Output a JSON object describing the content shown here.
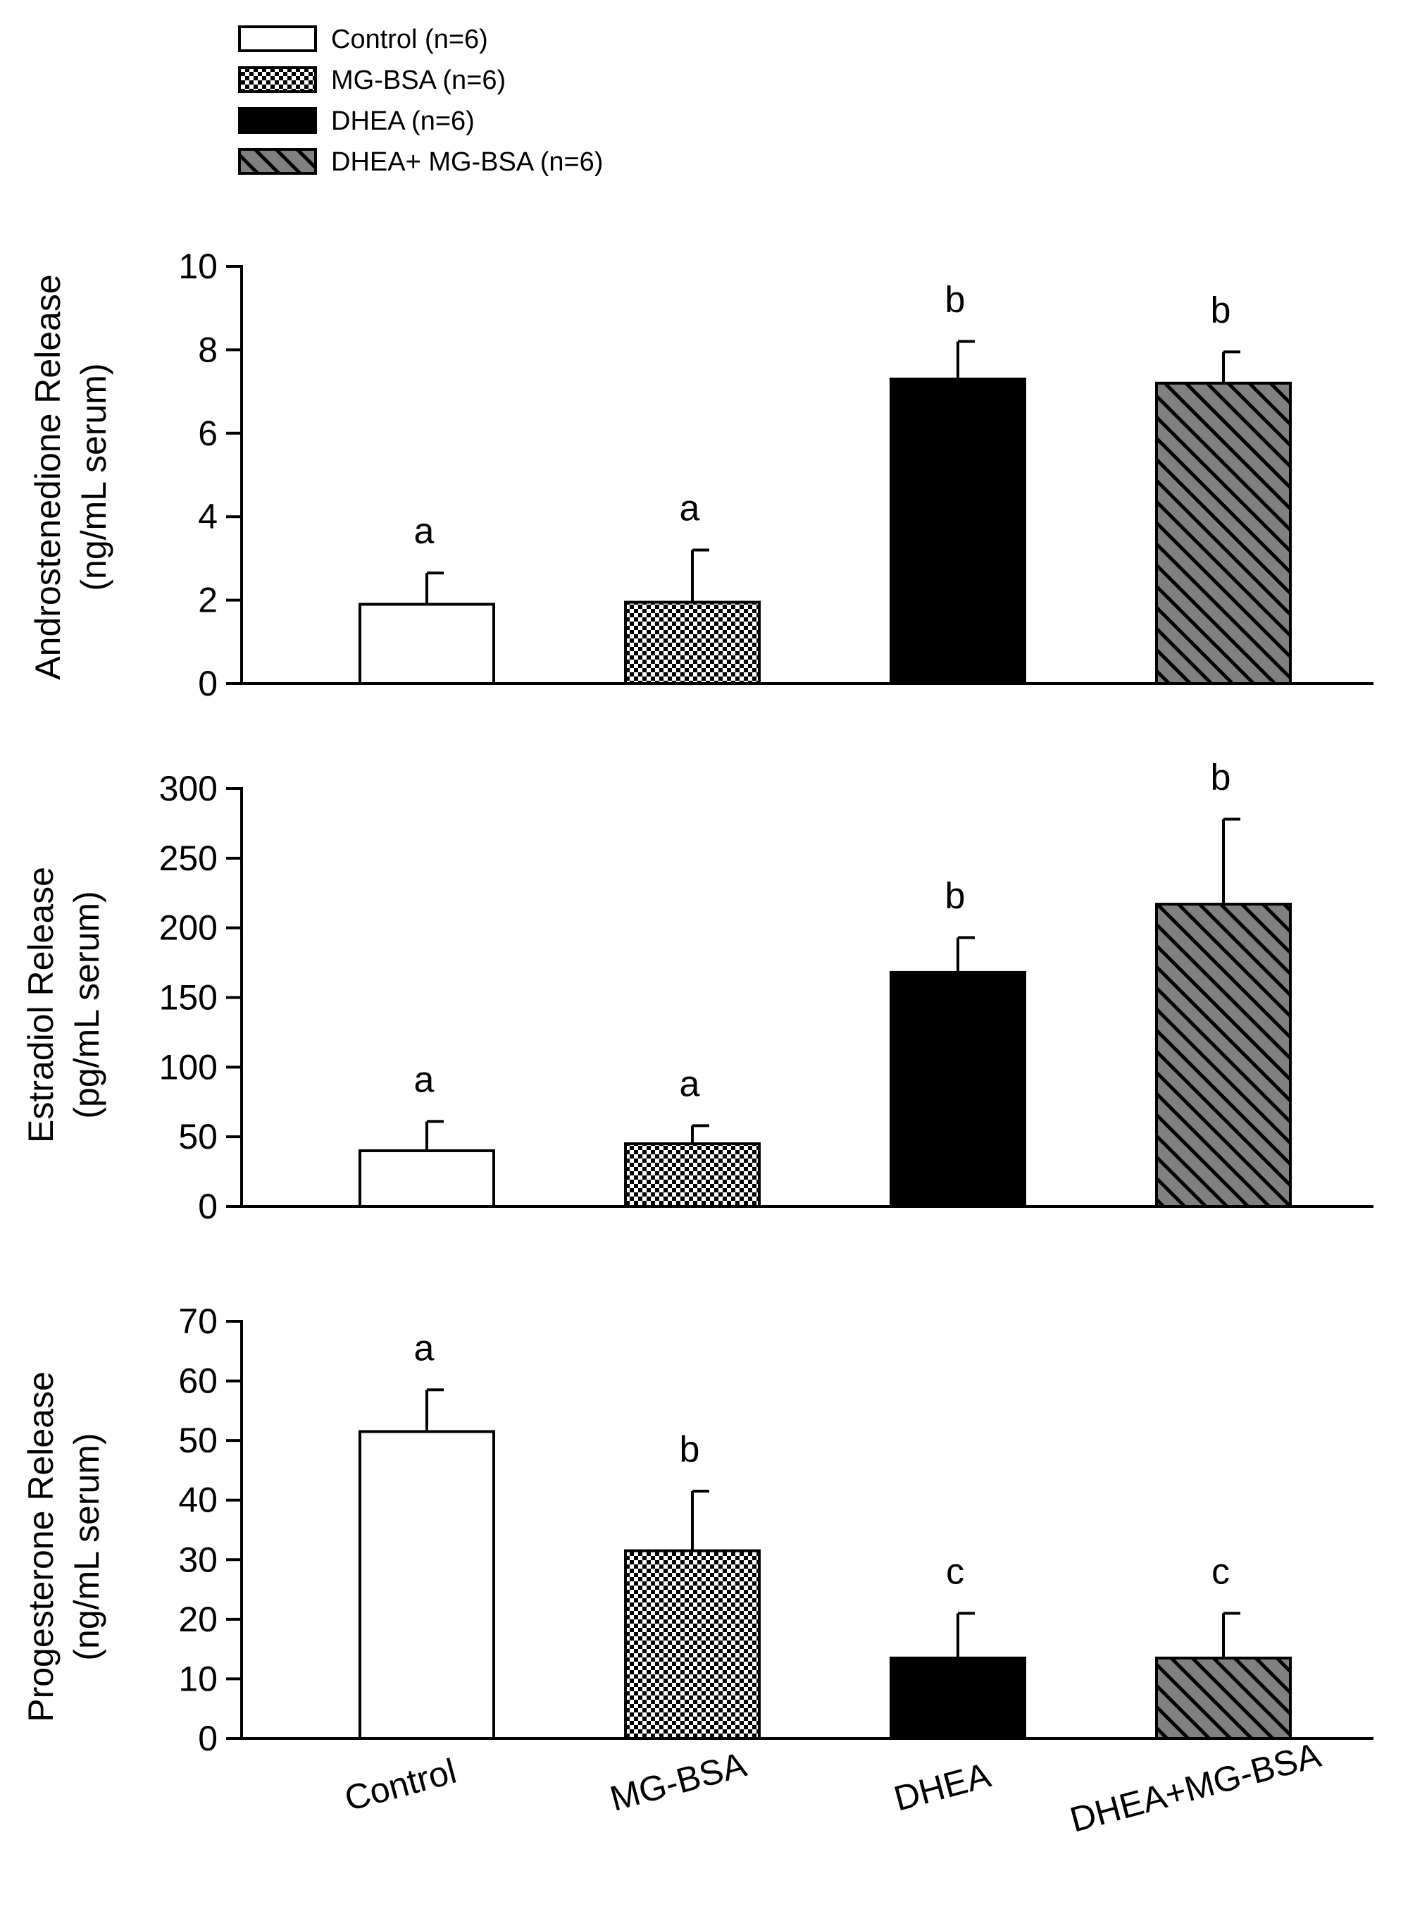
{
  "legend": {
    "items": [
      {
        "label": "Control (n=6)",
        "fill": "white"
      },
      {
        "label": "MG-BSA (n=6)",
        "fill": "checker"
      },
      {
        "label": "DHEA (n=6)",
        "fill": "black"
      },
      {
        "label": "DHEA+ MG-BSA (n=6)",
        "fill": "hatch"
      }
    ]
  },
  "colors": {
    "black": "#000000",
    "white": "#ffffff",
    "hatch_bg": "#808080",
    "checker_light": "#ffffff",
    "checker_dark": "#000000"
  },
  "chart_data": [
    {
      "type": "bar",
      "title": "",
      "ylabel_line1": "Androstenedione Release",
      "ylabel_line2": "(ng/mL serum)",
      "xlabel": "",
      "categories": [
        "Control",
        "MG-BSA",
        "DHEA",
        "DHEA+MG-BSA"
      ],
      "values": [
        1.9,
        1.95,
        7.3,
        7.2
      ],
      "errors": [
        0.75,
        1.25,
        0.9,
        0.75
      ],
      "letters": [
        "a",
        "a",
        "b",
        "b"
      ],
      "ylim": [
        0,
        10
      ],
      "yticks": [
        0,
        2,
        4,
        6,
        8,
        10
      ],
      "ytick_labels": [
        "0",
        "2",
        "4",
        "6",
        "8",
        "10"
      ]
    },
    {
      "type": "bar",
      "title": "",
      "ylabel_line1": "Estradiol Release",
      "ylabel_line2": "(pg/mL serum)",
      "xlabel": "",
      "categories": [
        "Control",
        "MG-BSA",
        "DHEA",
        "DHEA+MG-BSA"
      ],
      "values": [
        40,
        45,
        168,
        217
      ],
      "errors": [
        21,
        13,
        25,
        61
      ],
      "letters": [
        "a",
        "a",
        "b",
        "b"
      ],
      "ylim": [
        0,
        300
      ],
      "yticks": [
        0,
        50,
        100,
        150,
        200,
        250,
        300
      ],
      "ytick_labels": [
        "0",
        "50",
        "100",
        "150",
        "200",
        "250",
        "300"
      ]
    },
    {
      "type": "bar",
      "title": "",
      "ylabel_line1": "Progesterone Release",
      "ylabel_line2": "(ng/mL serum)",
      "xlabel": "",
      "categories": [
        "Control",
        "MG-BSA",
        "DHEA",
        "DHEA+MG-BSA"
      ],
      "category_labels": [
        "Control",
        "MG-BSA",
        "DHEA",
        "DHEA+MG-BSA"
      ],
      "values": [
        51.5,
        31.5,
        13.5,
        13.5
      ],
      "errors": [
        7,
        10,
        7.5,
        7.5
      ],
      "letters": [
        "a",
        "b",
        "c",
        "c"
      ],
      "ylim": [
        0,
        70
      ],
      "yticks": [
        0,
        10,
        20,
        30,
        40,
        50,
        60,
        70
      ],
      "ytick_labels": [
        "0",
        "10",
        "20",
        "30",
        "40",
        "50",
        "60",
        "70"
      ]
    }
  ]
}
